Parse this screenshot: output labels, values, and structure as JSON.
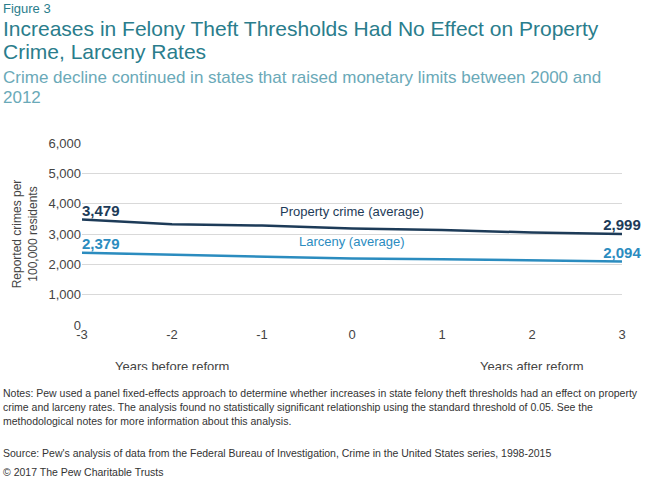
{
  "chart_data": {
    "type": "line",
    "figure_label": "Figure 3",
    "title": "Increases in Felony Theft Thresholds Had No Effect on Property Crime, Larceny Rates",
    "subtitle": "Crime decline continued in states that raised monetary limits between 2000 and 2012",
    "ylabel": "Reported crimes per 100,000 residents",
    "annotations": [
      "Years before reform",
      "Years after reform"
    ],
    "x": [
      -3,
      -2,
      -1,
      0,
      1,
      2,
      3
    ],
    "xlim": [
      -3,
      3
    ],
    "xticks": [
      -3,
      -2,
      -1,
      0,
      1,
      2,
      3
    ],
    "ylim": [
      0,
      6000
    ],
    "yticks": [
      0,
      {
        "value": 1000,
        "label": "1,000"
      },
      {
        "value": 2000,
        "label": "2,000"
      },
      {
        "value": 3000,
        "label": "3,000"
      },
      {
        "value": 4000,
        "label": "4,000"
      },
      {
        "value": 5000,
        "label": "5,000"
      },
      {
        "value": 6000,
        "label": "6,000"
      }
    ],
    "grid": true,
    "data_labels": true,
    "series": [
      {
        "name": "Property crime (average)",
        "color": "#1d3b58",
        "values": [
          3479,
          3320,
          3280,
          3180,
          3130,
          3050,
          2999
        ],
        "value_labels": [
          "3,479",
          null,
          null,
          null,
          null,
          null,
          "2,999"
        ]
      },
      {
        "name": "Larceny (average)",
        "color": "#2b8cbf",
        "values": [
          2379,
          2310,
          2260,
          2190,
          2170,
          2130,
          2094
        ],
        "value_labels": [
          "2,379",
          null,
          null,
          null,
          null,
          null,
          "2,094"
        ]
      }
    ],
    "notes": "Notes: Pew used a panel fixed-effects approach to determine whether increases in state felony theft thresholds had an effect on property crime and larceny rates. The analysis found no statistically significant relationship using the standard threshold of 0.05. See the methodological notes for more information about this analysis.",
    "source": "Source: Pew's analysis of data from the Federal Bureau of Investigation, Crime in the United States series, 1998-2015",
    "copyright": "© 2017 The Pew Charitable Trusts"
  }
}
